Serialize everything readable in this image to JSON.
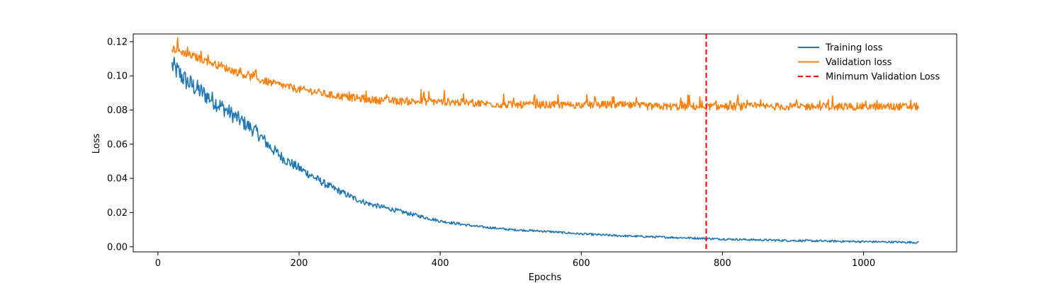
{
  "chart_data": {
    "type": "line",
    "title": "",
    "xlabel": "Epochs",
    "ylabel": "Loss",
    "xlim": [
      -35,
      1132
    ],
    "ylim": [
      -0.003,
      0.1245
    ],
    "xticks": [
      0,
      200,
      400,
      600,
      800,
      1000
    ],
    "yticks": [
      0.0,
      0.02,
      0.04,
      0.06,
      0.08,
      0.1,
      0.12
    ],
    "ytick_labels": [
      "0.00",
      "0.02",
      "0.04",
      "0.06",
      "0.08",
      "0.10",
      "0.12"
    ],
    "grid": false,
    "legend_position": "top-right",
    "series": [
      {
        "name": "Training loss",
        "color": "#1f77b4",
        "x": [
          20,
          40,
          60,
          80,
          100,
          120,
          140,
          160,
          180,
          200,
          220,
          240,
          260,
          280,
          300,
          320,
          340,
          360,
          380,
          400,
          450,
          500,
          550,
          600,
          650,
          700,
          750,
          800,
          850,
          900,
          950,
          1000,
          1050,
          1078
        ],
        "y": [
          0.106,
          0.097,
          0.091,
          0.085,
          0.079,
          0.073,
          0.067,
          0.058,
          0.051,
          0.046,
          0.041,
          0.036,
          0.032,
          0.028,
          0.025,
          0.023,
          0.021,
          0.019,
          0.017,
          0.015,
          0.012,
          0.01,
          0.009,
          0.0075,
          0.0065,
          0.0058,
          0.0052,
          0.0045,
          0.004,
          0.0036,
          0.0033,
          0.003,
          0.0027,
          0.0025
        ]
      },
      {
        "name": "Validation loss",
        "color": "#ff7f0e",
        "x": [
          20,
          40,
          60,
          80,
          100,
          120,
          140,
          160,
          180,
          200,
          220,
          240,
          260,
          280,
          300,
          350,
          400,
          450,
          500,
          550,
          600,
          650,
          700,
          750,
          800,
          850,
          900,
          950,
          1000,
          1050,
          1078
        ],
        "y": [
          0.116,
          0.113,
          0.11,
          0.107,
          0.104,
          0.101,
          0.098,
          0.096,
          0.094,
          0.092,
          0.091,
          0.089,
          0.088,
          0.087,
          0.086,
          0.085,
          0.085,
          0.084,
          0.083,
          0.083,
          0.083,
          0.083,
          0.082,
          0.082,
          0.082,
          0.082,
          0.082,
          0.082,
          0.082,
          0.082,
          0.082
        ]
      },
      {
        "name": "Minimum Validation Loss",
        "color": "#ff0000",
        "style": "dashed",
        "vline_x": 777
      }
    ]
  }
}
